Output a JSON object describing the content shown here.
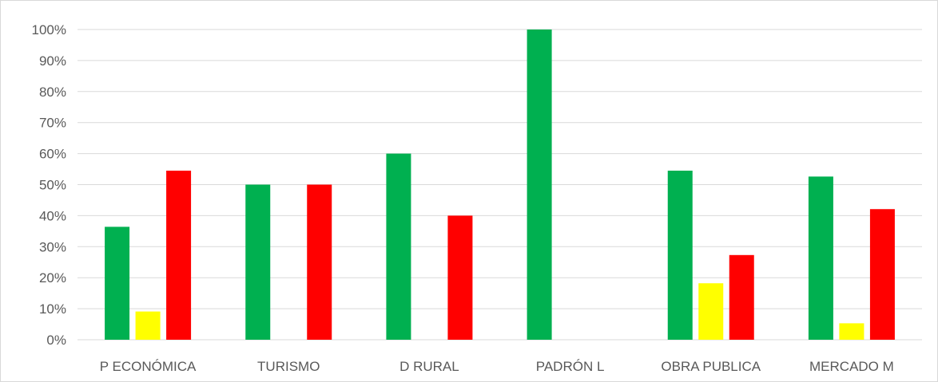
{
  "chart_data": {
    "type": "bar",
    "categories": [
      "P ECONÓMICA",
      "TURISMO",
      "D RURAL",
      "PADRÓN L",
      "OBRA PUBLICA",
      "MERCADO M"
    ],
    "series": [
      {
        "color": "#00b050",
        "values": [
          36.4,
          50,
          60,
          100,
          54.5,
          52.6
        ]
      },
      {
        "color": "#ffff00",
        "values": [
          9.1,
          0,
          0,
          0,
          18.2,
          5.3
        ]
      },
      {
        "color": "#ff0000",
        "values": [
          54.5,
          50,
          40,
          0,
          27.3,
          42.1
        ]
      }
    ],
    "ylim": [
      0,
      100
    ],
    "yticks": [
      {
        "value": 0,
        "label": "0%"
      },
      {
        "value": 10,
        "label": "10%"
      },
      {
        "value": 20,
        "label": "20%"
      },
      {
        "value": 30,
        "label": "30%"
      },
      {
        "value": 40,
        "label": "40%"
      },
      {
        "value": 50,
        "label": "50%"
      },
      {
        "value": 60,
        "label": "60%"
      },
      {
        "value": 70,
        "label": "70%"
      },
      {
        "value": 80,
        "label": "80%"
      },
      {
        "value": 90,
        "label": "90%"
      },
      {
        "value": 100,
        "label": "100%"
      }
    ],
    "grid": true,
    "title": "",
    "xlabel": "",
    "ylabel": ""
  }
}
